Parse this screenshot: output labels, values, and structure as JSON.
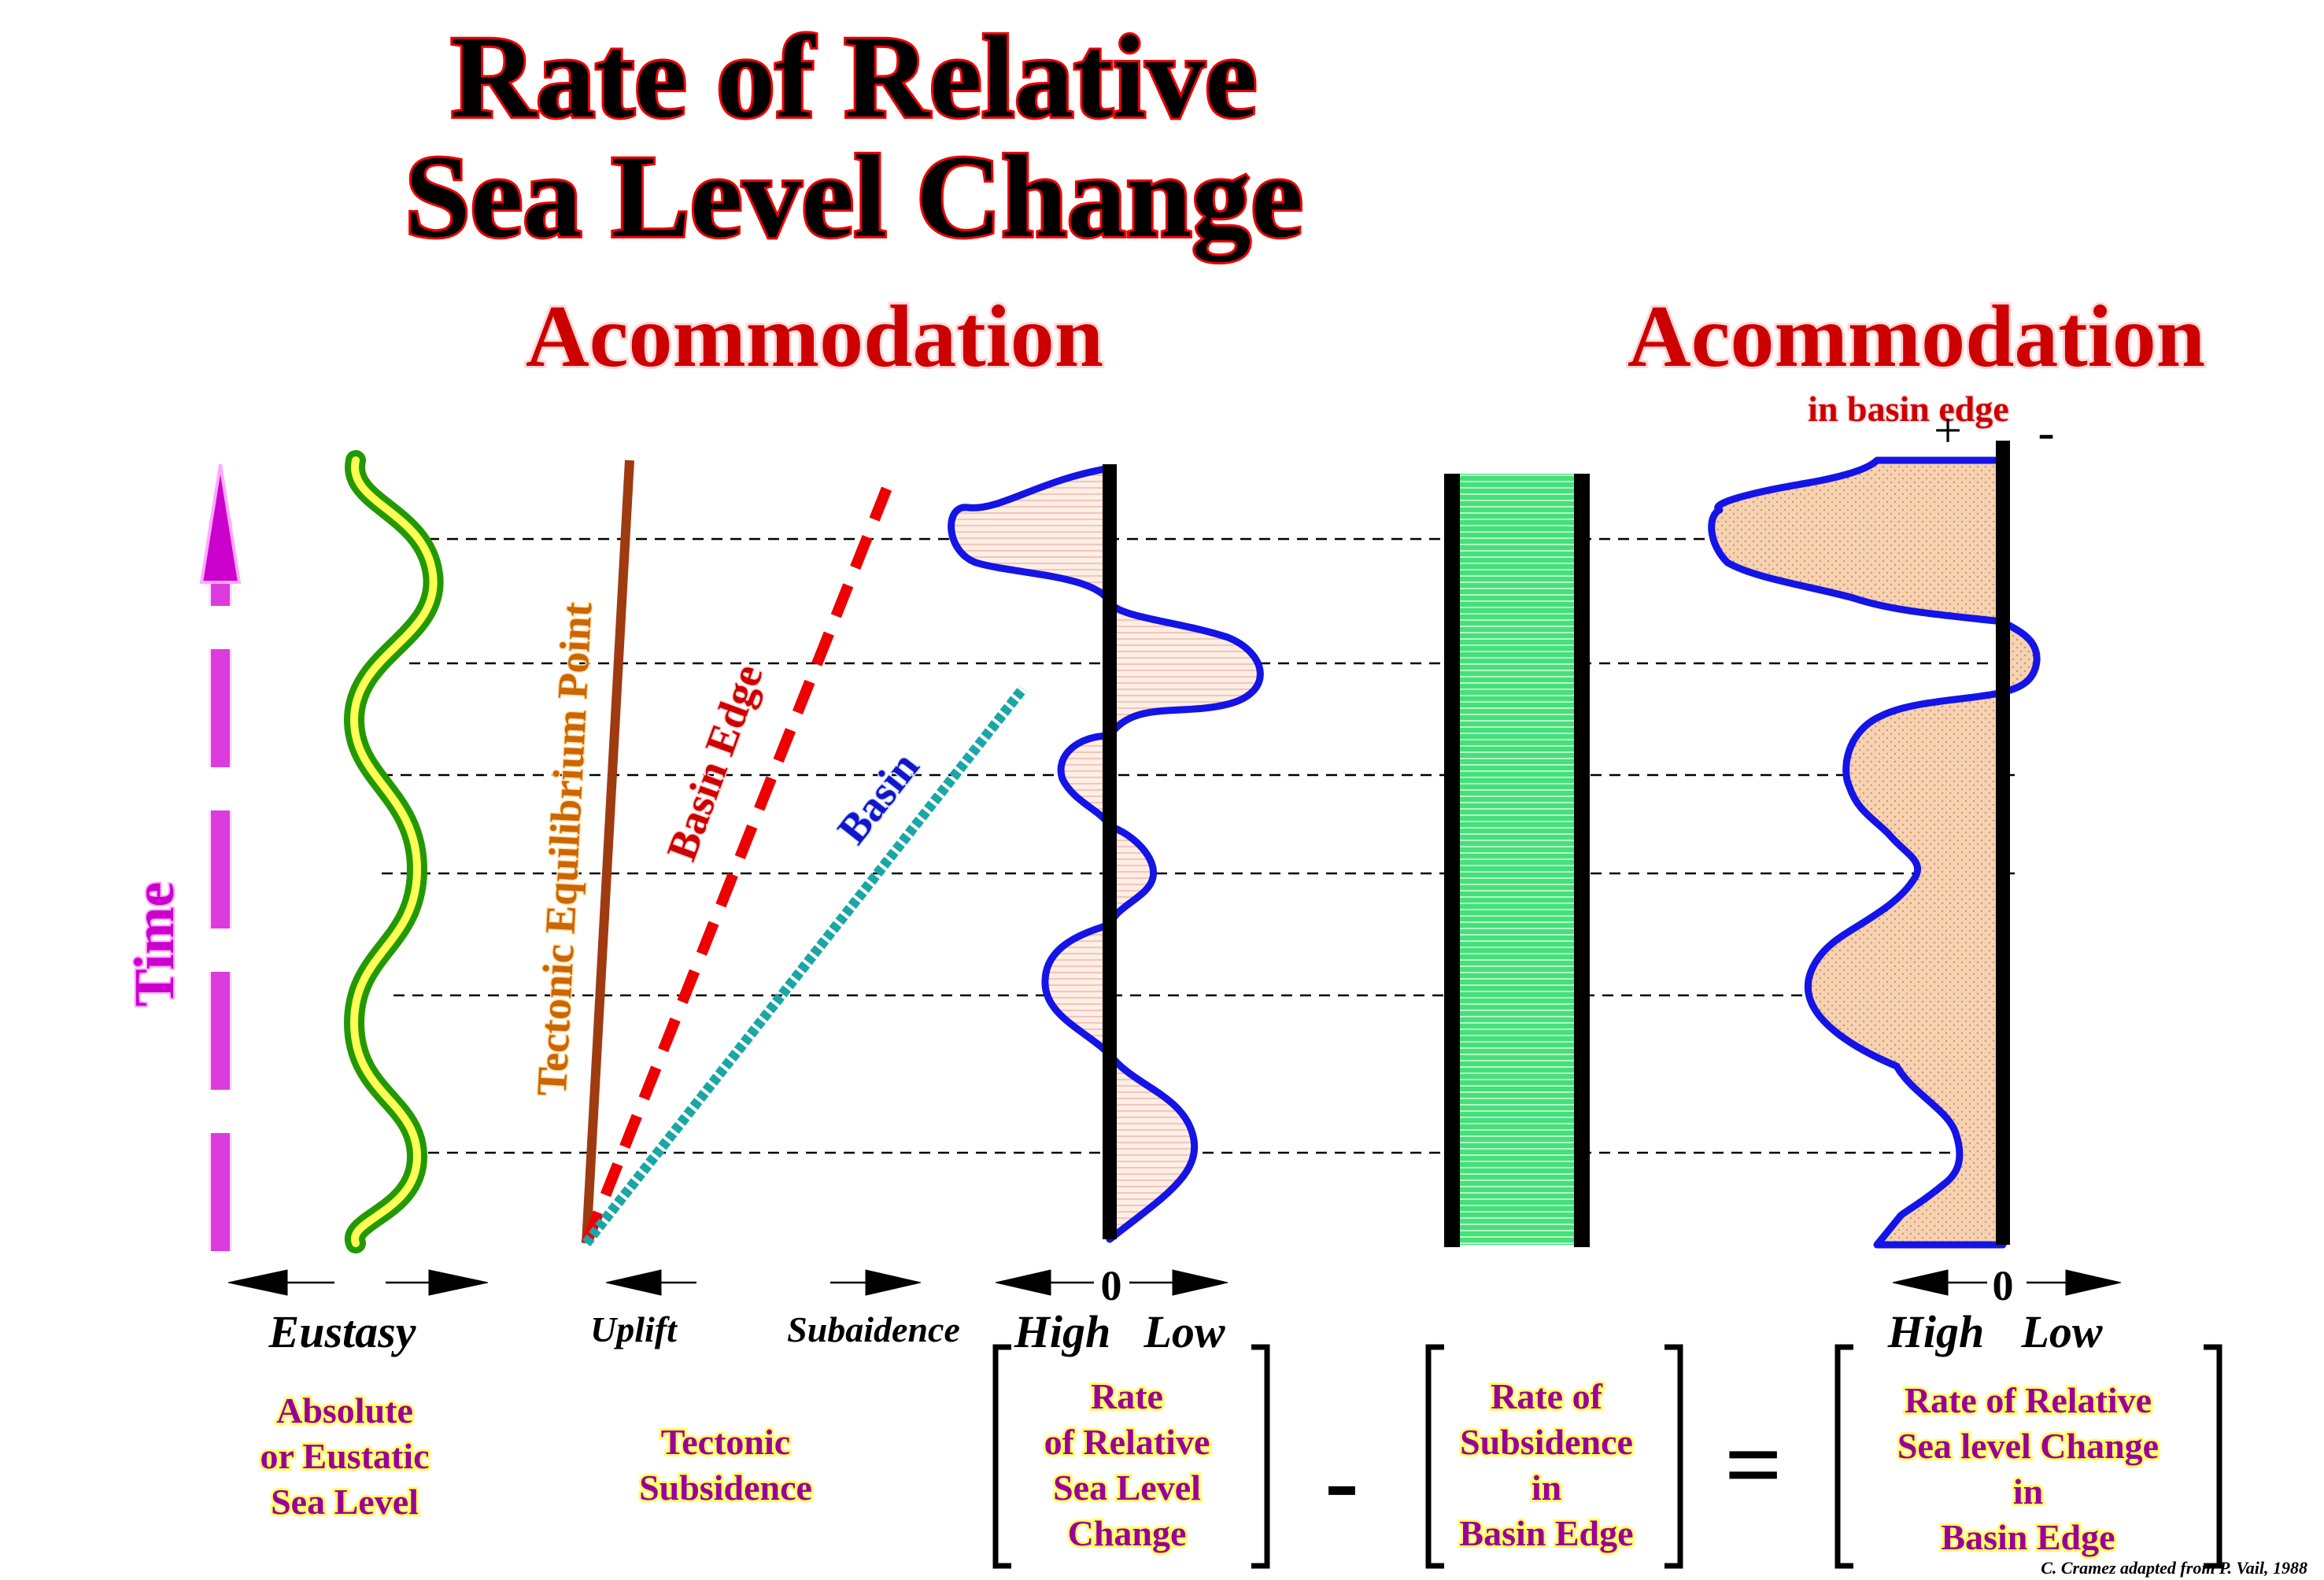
{
  "title": {
    "line1": "Rate of Relative",
    "line2": "Sea Level Change"
  },
  "headings": {
    "left": "Acommodation",
    "right": "Acommodation",
    "right_sub": "in basin edge"
  },
  "time_label": "Time",
  "line_labels": {
    "tectonic_equilibrium": "Tectonic Equilibrium Point",
    "basin_edge": "Basin Edge",
    "basin": "Basin"
  },
  "axis_labels": {
    "eustasy": "Eustasy",
    "uplift": "Uplift",
    "subsidence": "Subaidence",
    "high_1": "High",
    "low_1": "Low",
    "zero_1": "0",
    "high_2": "High",
    "low_2": "Low",
    "zero_2": "0",
    "plus": "+",
    "minus": "-"
  },
  "captions": {
    "eustatic": [
      "Absolute",
      "or Eustatic",
      "Sea Level"
    ],
    "tectonic": [
      "Tectonic",
      "Subsidence"
    ],
    "rate_rel": [
      "Rate",
      "of Relative",
      "Sea Level",
      "Change"
    ],
    "subsidence": [
      "Rate of",
      "Subsidence",
      "in",
      "Basin Edge"
    ],
    "result": [
      "Rate of Relative",
      "Sea level Change",
      "in",
      "Basin Edge"
    ]
  },
  "operators": {
    "minus": "-",
    "equals": "="
  },
  "credit": "C. Cramez adapted from P. Vail, 1988",
  "colors": {
    "title_fill": "#000000",
    "title_outline": "#ee0000",
    "heading": "#cc0000",
    "time_arrow": "#cc00cc",
    "eustasy_curve": "#66ee00",
    "tectonic_line": "#a03a10",
    "basin_edge_line": "#ee0000",
    "basin_line": "#1aa6a6",
    "curve_outline": "#1414e6",
    "fill_light": "#fce8de",
    "fill_tan": "#f5d2b2",
    "subsidence_fill": "#33dd66",
    "caption_text": "#9a0099",
    "caption_outline": "#ffff66"
  }
}
